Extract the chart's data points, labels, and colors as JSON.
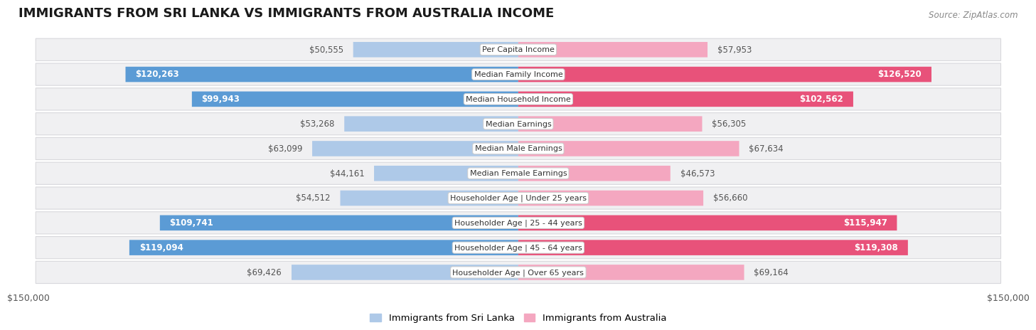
{
  "title": "IMMIGRANTS FROM SRI LANKA VS IMMIGRANTS FROM AUSTRALIA INCOME",
  "source": "Source: ZipAtlas.com",
  "categories": [
    "Per Capita Income",
    "Median Family Income",
    "Median Household Income",
    "Median Earnings",
    "Median Male Earnings",
    "Median Female Earnings",
    "Householder Age | Under 25 years",
    "Householder Age | 25 - 44 years",
    "Householder Age | 45 - 64 years",
    "Householder Age | Over 65 years"
  ],
  "sri_lanka_values": [
    50555,
    120263,
    99943,
    53268,
    63099,
    44161,
    54512,
    109741,
    119094,
    69426
  ],
  "australia_values": [
    57953,
    126520,
    102562,
    56305,
    67634,
    46573,
    56660,
    115947,
    119308,
    69164
  ],
  "sri_lanka_labels": [
    "$50,555",
    "$120,263",
    "$99,943",
    "$53,268",
    "$63,099",
    "$44,161",
    "$54,512",
    "$109,741",
    "$119,094",
    "$69,426"
  ],
  "australia_labels": [
    "$57,953",
    "$126,520",
    "$102,562",
    "$56,305",
    "$67,634",
    "$46,573",
    "$56,660",
    "$115,947",
    "$119,308",
    "$69,164"
  ],
  "max_value": 150000,
  "sri_lanka_color_light": "#aec9e8",
  "sri_lanka_color_dark": "#5b9bd5",
  "australia_color_light": "#f4a7c0",
  "australia_color_dark": "#e8527a",
  "row_bg_color": "#f0f0f2",
  "row_border_color": "#d8d8dc",
  "label_inside_color": "#ffffff",
  "label_outside_color": "#555555",
  "legend_sri_lanka": "Immigrants from Sri Lanka",
  "legend_australia": "Immigrants from Australia",
  "xlabel_left": "$150,000",
  "xlabel_right": "$150,000",
  "inside_threshold": 80000,
  "title_fontsize": 13,
  "label_fontsize": 8.5,
  "cat_fontsize": 8.0,
  "source_fontsize": 8.5
}
